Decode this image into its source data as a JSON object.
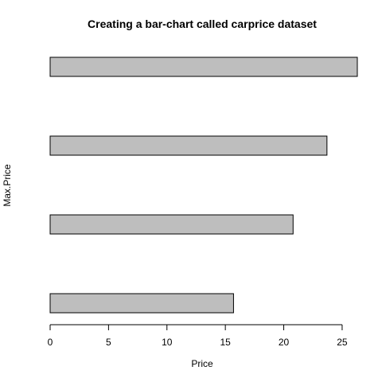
{
  "chart_data": {
    "type": "bar",
    "orientation": "horizontal",
    "title": "Creating a bar-chart called carprice dataset",
    "xlabel": "Price",
    "ylabel": "Max.Price",
    "values": [
      15.7,
      20.8,
      23.7,
      26.3
    ],
    "xlim": [
      0,
      26.3
    ],
    "xticks": [
      0,
      5,
      10,
      15,
      20,
      25
    ],
    "bar_color": "#bebebe",
    "border_color": "#000000",
    "grid": false,
    "legend": "none"
  }
}
